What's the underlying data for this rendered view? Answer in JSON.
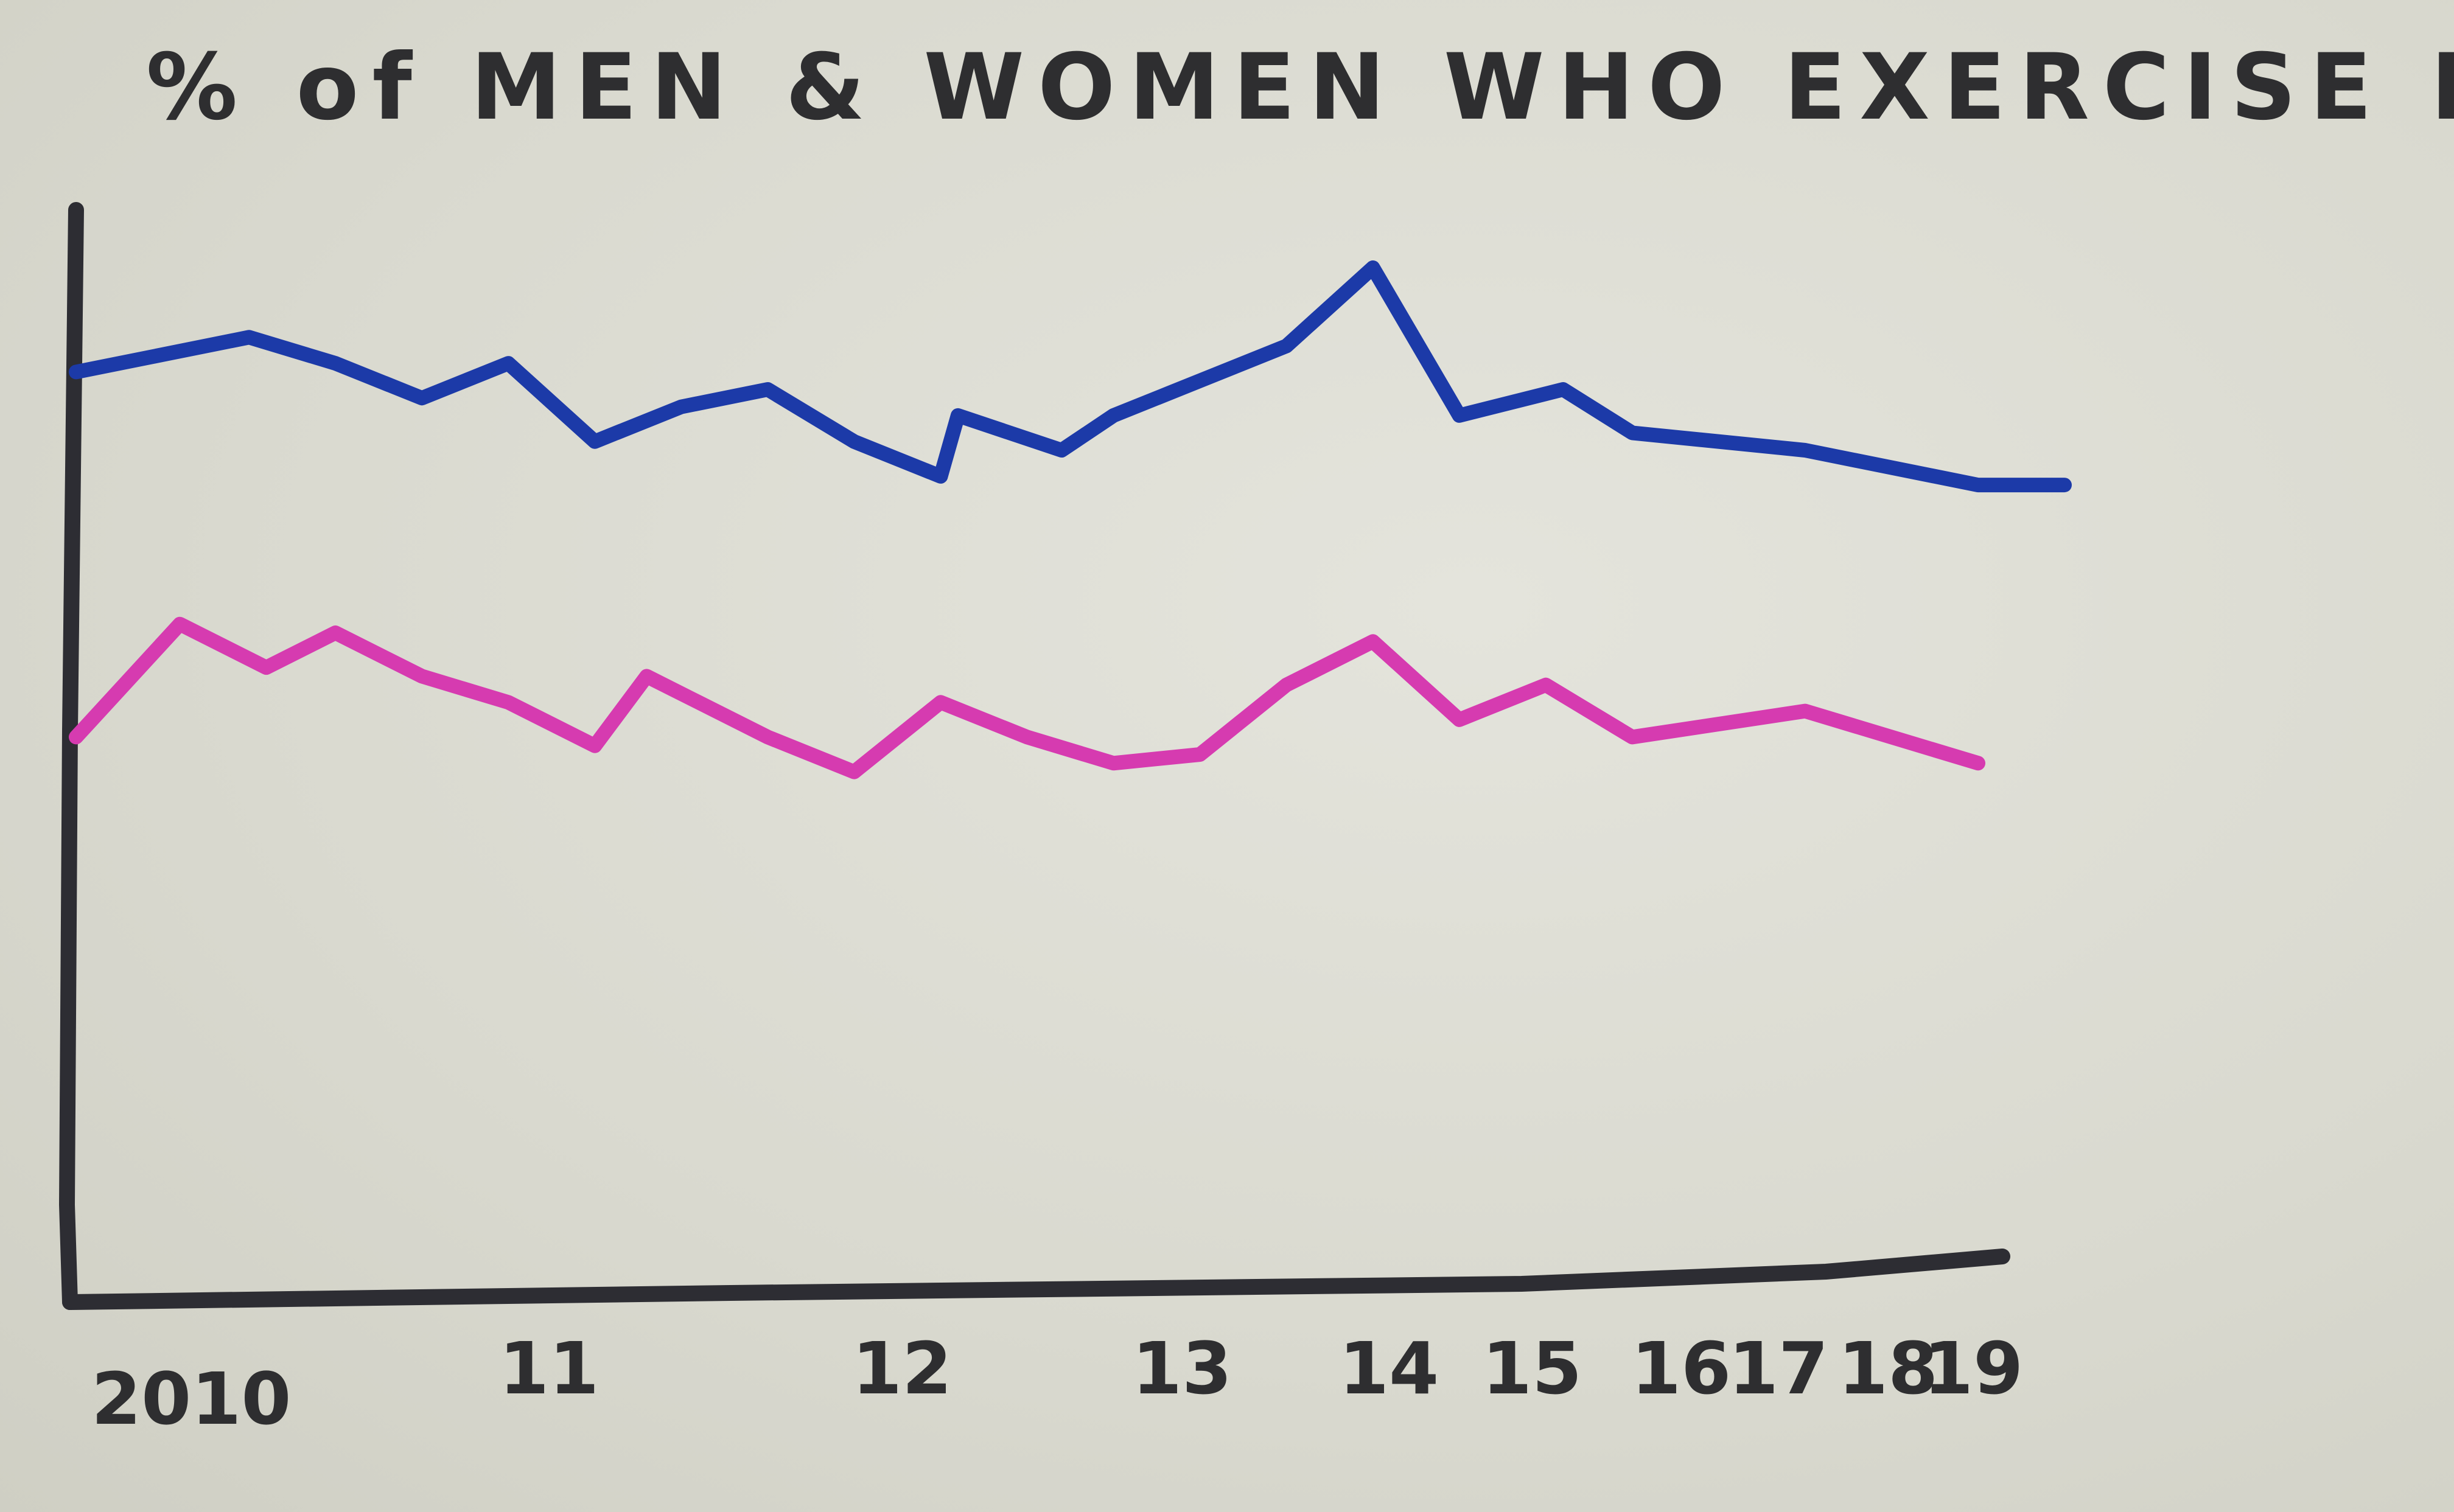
{
  "chart_data": {
    "type": "line",
    "title": "% of MEN & WOMEN WHO EXERCISE DAILY",
    "xlabel": "",
    "ylabel": "",
    "x_tick_labels": [
      "2010",
      "11",
      "12",
      "13",
      "14",
      "15",
      "16",
      "17",
      "18",
      "19"
    ],
    "y_ticks": "none",
    "grid": false,
    "legend": "none",
    "series": [
      {
        "color": "#1c3aa8",
        "points": [
          [
            2010.0,
            52
          ],
          [
            2010.25,
            54
          ],
          [
            2010.5,
            56
          ],
          [
            2010.75,
            53
          ],
          [
            2011.0,
            49
          ],
          [
            2011.25,
            53
          ],
          [
            2011.5,
            44
          ],
          [
            2011.75,
            48
          ],
          [
            2012.0,
            50
          ],
          [
            2012.25,
            44
          ],
          [
            2012.5,
            40
          ],
          [
            2012.55,
            47
          ],
          [
            2012.85,
            43
          ],
          [
            2013.0,
            47
          ],
          [
            2013.5,
            55
          ],
          [
            2013.75,
            64
          ],
          [
            2014.0,
            47
          ],
          [
            2014.3,
            50
          ],
          [
            2014.5,
            45
          ],
          [
            2015.0,
            43
          ],
          [
            2015.5,
            39
          ],
          [
            2015.75,
            39
          ]
        ]
      },
      {
        "color": "#d63bb0",
        "points": [
          [
            2010.0,
            10
          ],
          [
            2010.3,
            23
          ],
          [
            2010.55,
            18
          ],
          [
            2010.75,
            22
          ],
          [
            2011.0,
            17
          ],
          [
            2011.25,
            14
          ],
          [
            2011.5,
            9
          ],
          [
            2011.65,
            17
          ],
          [
            2012.0,
            10
          ],
          [
            2012.25,
            6
          ],
          [
            2012.5,
            14
          ],
          [
            2012.75,
            10
          ],
          [
            2013.0,
            7
          ],
          [
            2013.25,
            8
          ],
          [
            2013.5,
            16
          ],
          [
            2013.75,
            21
          ],
          [
            2014.0,
            12
          ],
          [
            2014.25,
            16
          ],
          [
            2014.5,
            10
          ],
          [
            2015.0,
            13
          ],
          [
            2015.5,
            7
          ]
        ]
      }
    ],
    "xlim": [
      2010,
      2015.5
    ],
    "ylim": [
      -55,
      85
    ]
  }
}
